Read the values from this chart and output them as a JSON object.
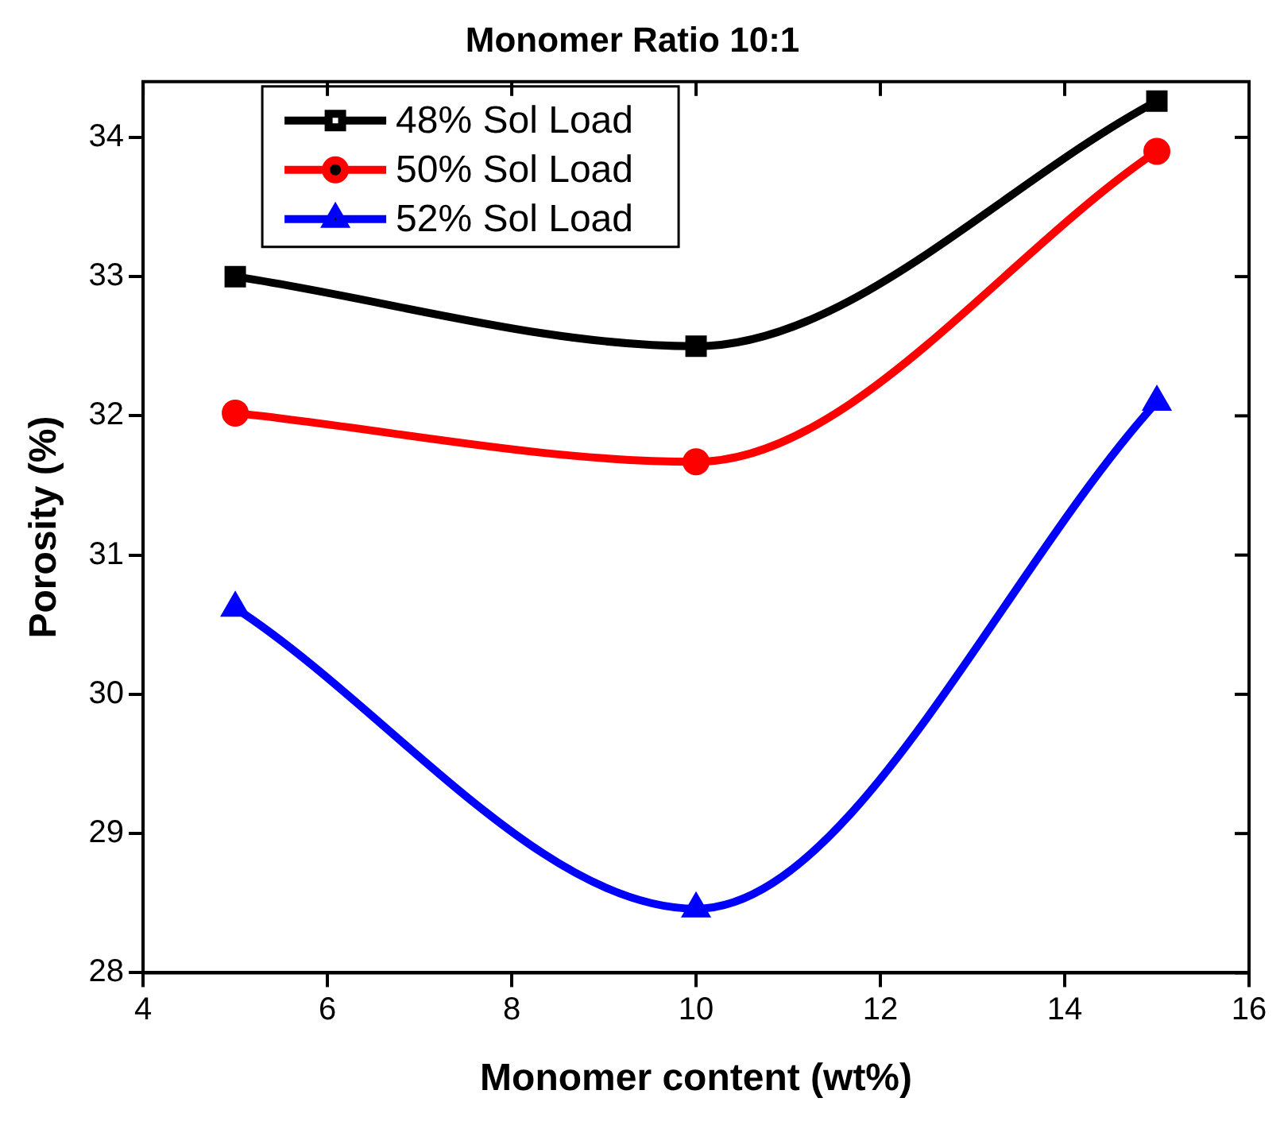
{
  "chart_data": {
    "type": "line",
    "title": "Monomer Ratio 10:1",
    "xlabel": "Monomer content (wt%)",
    "ylabel": "Porosity (%)",
    "x": [
      5,
      10,
      15
    ],
    "series": [
      {
        "name": "48% Sol Load",
        "color": "#000000",
        "marker": "square",
        "values": [
          33.0,
          32.5,
          34.26
        ]
      },
      {
        "name": "50% Sol Load",
        "color": "#ff0000",
        "marker": "circle",
        "values": [
          32.02,
          31.67,
          33.9
        ]
      },
      {
        "name": "52% Sol Load",
        "color": "#0000ff",
        "marker": "triangle",
        "values": [
          30.62,
          28.46,
          32.1
        ]
      }
    ],
    "xlim": [
      4,
      16
    ],
    "xticks": [
      4,
      6,
      8,
      10,
      12,
      14,
      16
    ],
    "ylim": [
      28,
      34.4
    ],
    "yticks": [
      28,
      29,
      30,
      31,
      32,
      33,
      34
    ],
    "grid": false,
    "legend": "top left",
    "line_style": "solid"
  }
}
